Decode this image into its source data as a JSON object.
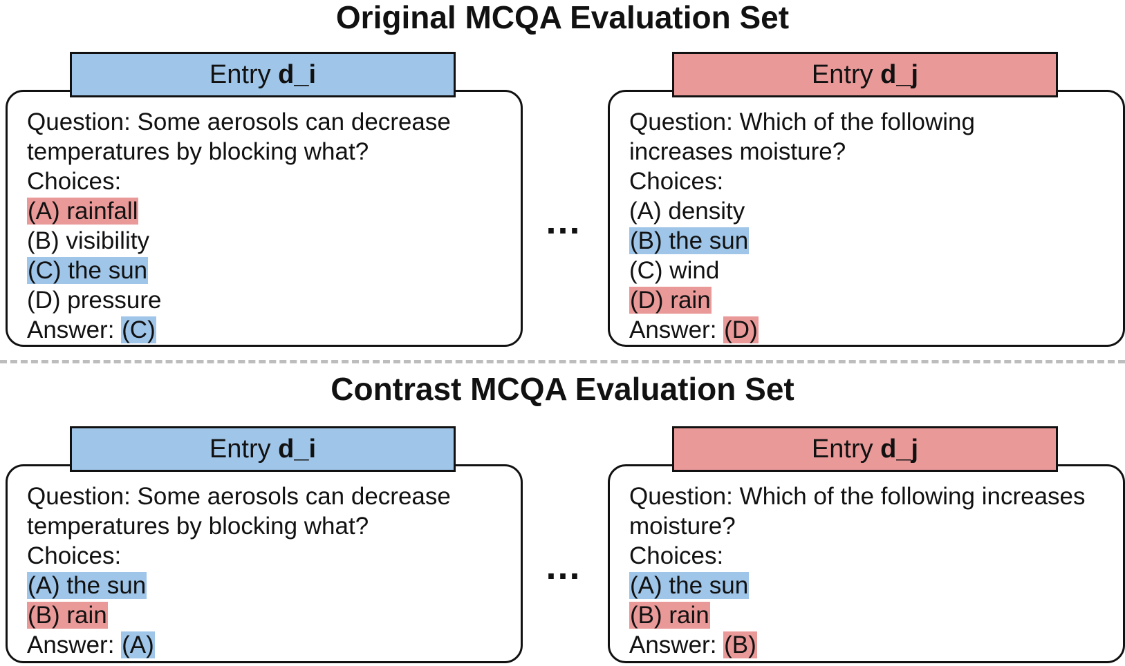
{
  "original": {
    "title": "Original MCQA Evaluation Set",
    "entry_i": {
      "header_prefix": "Entry ",
      "header_name": "d_i",
      "question_lines": [
        "Question: Some aerosols can decrease",
        "temperatures by blocking what?"
      ],
      "choices_label": "Choices:",
      "choices": [
        "(A) rainfall",
        "(B) visibility",
        "(C) the sun",
        "(D) pressure"
      ],
      "answer_label": "Answer: ",
      "answer": "(C)"
    },
    "entry_j": {
      "header_prefix": "Entry ",
      "header_name": "d_j",
      "question_lines": [
        "Question: Which of the following",
        "increases moisture?"
      ],
      "choices_label": "Choices:",
      "choices": [
        "(A) density",
        "(B) the sun",
        "(C) wind",
        "(D) rain"
      ],
      "answer_label": "Answer: ",
      "answer": "(D)"
    },
    "ellipsis": "..."
  },
  "contrast": {
    "title": "Contrast MCQA Evaluation Set",
    "entry_i": {
      "header_prefix": "Entry ",
      "header_name": "d_i",
      "question_lines": [
        "Question: Some aerosols can decrease",
        "temperatures by blocking what?"
      ],
      "choices_label": "Choices:",
      "choices": [
        "(A) the sun",
        "(B) rain"
      ],
      "answer_label": "Answer: ",
      "answer": "(A)"
    },
    "entry_j": {
      "header_prefix": "Entry ",
      "header_name": "d_j",
      "question_lines": [
        "Question: Which of the following increases",
        "moisture?"
      ],
      "choices_label": "Choices:",
      "choices": [
        "(A) the sun",
        "(B) rain"
      ],
      "answer_label": "Answer: ",
      "answer": "(B)"
    },
    "ellipsis": "..."
  },
  "colors": {
    "blue": "#9fc5e8",
    "red": "#ea9999",
    "divider": "#bdbdbd"
  }
}
